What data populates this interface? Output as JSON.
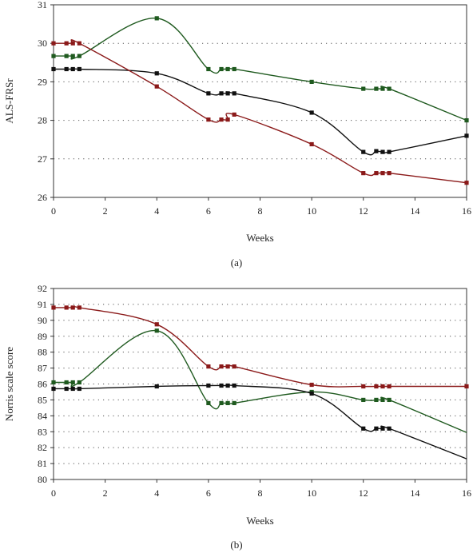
{
  "chart_data": [
    {
      "type": "line",
      "panel_label": "(a)",
      "xlabel": "Weeks",
      "ylabel": "ALS-FRSr",
      "xlim": [
        0,
        16
      ],
      "ylim": [
        26,
        31
      ],
      "xticks": [
        "0",
        "2",
        "4",
        "6",
        "8",
        "10",
        "12",
        "14",
        "16"
      ],
      "yticks": [
        "26",
        "27",
        "28",
        "29",
        "30",
        "31"
      ],
      "grid": "horizontal-dotted",
      "series": [
        {
          "color": "#1f5a1f",
          "points": [
            [
              0,
              29.67
            ],
            [
              0.5,
              29.67
            ],
            [
              0.75,
              29.67
            ],
            [
              1,
              29.67
            ],
            [
              4,
              30.65
            ],
            [
              6,
              29.33
            ],
            [
              6.5,
              29.33
            ],
            [
              6.75,
              29.33
            ],
            [
              7,
              29.33
            ],
            [
              10,
              29.0
            ],
            [
              12,
              28.82
            ],
            [
              12.5,
              28.82
            ],
            [
              12.75,
              28.82
            ],
            [
              13,
              28.82
            ],
            [
              16,
              28.0
            ]
          ]
        },
        {
          "color": "#111111",
          "points": [
            [
              0,
              29.33
            ],
            [
              0.5,
              29.33
            ],
            [
              0.75,
              29.33
            ],
            [
              1,
              29.33
            ],
            [
              4,
              29.22
            ],
            [
              6,
              28.7
            ],
            [
              6.5,
              28.7
            ],
            [
              6.75,
              28.7
            ],
            [
              7,
              28.7
            ],
            [
              10,
              28.2
            ],
            [
              12,
              27.18
            ],
            [
              12.5,
              27.2
            ],
            [
              12.75,
              27.18
            ],
            [
              13,
              27.18
            ],
            [
              16,
              27.6
            ]
          ]
        },
        {
          "color": "#8b1a1a",
          "points": [
            [
              0,
              30.0
            ],
            [
              0.5,
              30.0
            ],
            [
              0.75,
              30.0
            ],
            [
              1,
              30.0
            ],
            [
              4,
              28.88
            ],
            [
              6,
              28.02
            ],
            [
              6.5,
              28.02
            ],
            [
              6.75,
              28.02
            ],
            [
              7,
              28.15
            ],
            [
              10,
              27.38
            ],
            [
              12,
              26.63
            ],
            [
              12.5,
              26.63
            ],
            [
              12.75,
              26.63
            ],
            [
              13,
              26.63
            ],
            [
              16,
              26.38
            ]
          ]
        }
      ]
    },
    {
      "type": "line",
      "panel_label": "(b)",
      "xlabel": "Weeks",
      "ylabel": "Norris scale score",
      "xlim": [
        0,
        16
      ],
      "ylim": [
        80,
        92
      ],
      "xticks": [
        "0",
        "2",
        "4",
        "6",
        "8",
        "10",
        "12",
        "14",
        "16"
      ],
      "yticks": [
        "80",
        "81",
        "82",
        "83",
        "84",
        "85",
        "86",
        "87",
        "88",
        "89",
        "90",
        "91",
        "92"
      ],
      "grid": "horizontal-dotted",
      "series": [
        {
          "color": "#8b1a1a",
          "points": [
            [
              0,
              90.8
            ],
            [
              0.5,
              90.8
            ],
            [
              0.75,
              90.8
            ],
            [
              1,
              90.8
            ],
            [
              4,
              89.75
            ],
            [
              6,
              87.1
            ],
            [
              6.5,
              87.1
            ],
            [
              6.75,
              87.1
            ],
            [
              7,
              87.1
            ],
            [
              10,
              85.95
            ],
            [
              12,
              85.85
            ],
            [
              12.5,
              85.85
            ],
            [
              12.75,
              85.85
            ],
            [
              13,
              85.85
            ],
            [
              16,
              85.85
            ]
          ]
        },
        {
          "color": "#1f5a1f",
          "points": [
            [
              0,
              86.1
            ],
            [
              0.5,
              86.1
            ],
            [
              0.75,
              86.1
            ],
            [
              1,
              86.1
            ],
            [
              4,
              89.35
            ],
            [
              6,
              84.8
            ],
            [
              6.5,
              84.8
            ],
            [
              6.75,
              84.8
            ],
            [
              7,
              84.8
            ],
            [
              10,
              85.5
            ],
            [
              12,
              85.0
            ],
            [
              12.5,
              85.0
            ],
            [
              12.75,
              85.0
            ],
            [
              13,
              85.0
            ],
            [
              16,
              82.95
            ]
          ]
        },
        {
          "color": "#111111",
          "points": [
            [
              0,
              85.7
            ],
            [
              0.5,
              85.7
            ],
            [
              0.75,
              85.7
            ],
            [
              1,
              85.7
            ],
            [
              4,
              85.85
            ],
            [
              6,
              85.9
            ],
            [
              6.5,
              85.9
            ],
            [
              6.75,
              85.9
            ],
            [
              7,
              85.9
            ],
            [
              10,
              85.4
            ],
            [
              12,
              83.2
            ],
            [
              12.5,
              83.2
            ],
            [
              12.75,
              83.2
            ],
            [
              13,
              83.2
            ],
            [
              16,
              81.3
            ]
          ]
        }
      ]
    }
  ]
}
